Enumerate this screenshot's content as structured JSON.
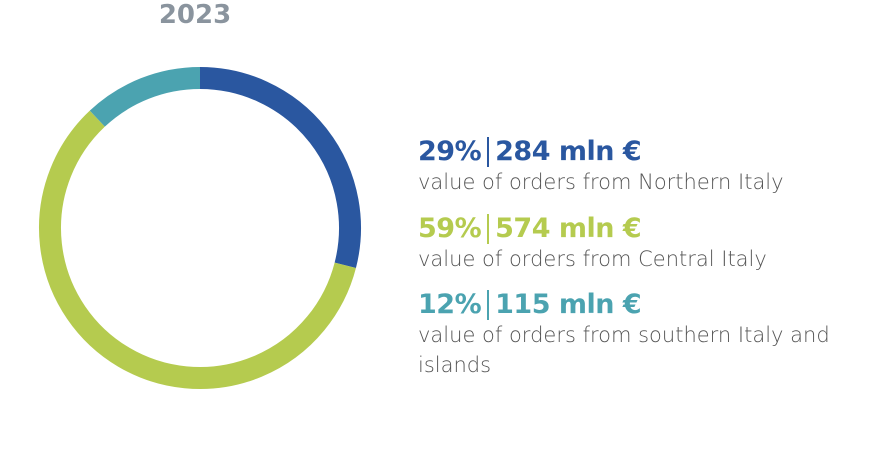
{
  "chart_data": {
    "type": "donut",
    "title": "2023",
    "categories": [
      "value of orders from Northern Italy",
      "value of orders from Central Italy",
      "value of orders from southern Italy and islands"
    ],
    "values": [
      29,
      59,
      12
    ],
    "value_labels": [
      "29%",
      "59%",
      "12%"
    ],
    "amounts": [
      284,
      574,
      115
    ],
    "amount_labels": [
      "284 mln €",
      "574 mln €",
      "115 mln €"
    ],
    "colors": [
      "#2a57a0",
      "#b5cb4f",
      "#4ba3b0"
    ]
  }
}
